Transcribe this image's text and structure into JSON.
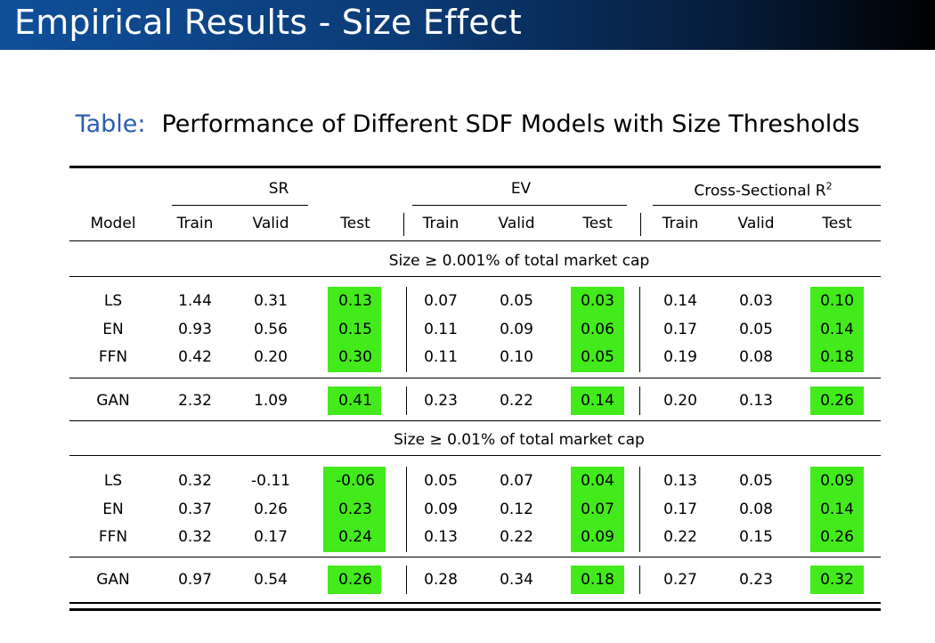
{
  "slide": {
    "title": "Empirical Results - Size Effect"
  },
  "caption": {
    "label": "Table:",
    "text": "Performance of Different SDF Models with Size Thresholds"
  },
  "table": {
    "groups": {
      "sr": "SR",
      "ev": "EV",
      "r2": "Cross-Sectional R",
      "r2_sup": "2"
    },
    "header": [
      "Model",
      "Train",
      "Valid",
      "Test",
      "Train",
      "Valid",
      "Test",
      "Train",
      "Valid",
      "Test"
    ],
    "sections": [
      {
        "title": "Size ≥ 0.001% of total market cap",
        "rows": [
          {
            "model": "LS",
            "values": [
              "1.44",
              "0.31",
              "0.13",
              "0.07",
              "0.05",
              "0.03",
              "0.14",
              "0.03",
              "0.10"
            ]
          },
          {
            "model": "EN",
            "values": [
              "0.93",
              "0.56",
              "0.15",
              "0.11",
              "0.09",
              "0.06",
              "0.17",
              "0.05",
              "0.14"
            ]
          },
          {
            "model": "FFN",
            "values": [
              "0.42",
              "0.20",
              "0.30",
              "0.11",
              "0.10",
              "0.05",
              "0.19",
              "0.08",
              "0.18"
            ]
          },
          {
            "model": "GAN",
            "values": [
              "2.32",
              "1.09",
              "0.41",
              "0.23",
              "0.22",
              "0.14",
              "0.20",
              "0.13",
              "0.26"
            ]
          }
        ]
      },
      {
        "title": "Size ≥ 0.01% of total market cap",
        "rows": [
          {
            "model": "LS",
            "values": [
              "0.32",
              "-0.11",
              "-0.06",
              "0.05",
              "0.07",
              "0.04",
              "0.13",
              "0.05",
              "0.09"
            ]
          },
          {
            "model": "EN",
            "values": [
              "0.37",
              "0.26",
              "0.23",
              "0.09",
              "0.12",
              "0.07",
              "0.17",
              "0.08",
              "0.14"
            ]
          },
          {
            "model": "FFN",
            "values": [
              "0.32",
              "0.17",
              "0.24",
              "0.13",
              "0.22",
              "0.09",
              "0.22",
              "0.15",
              "0.26"
            ]
          },
          {
            "model": "GAN",
            "values": [
              "0.97",
              "0.54",
              "0.26",
              "0.28",
              "0.34",
              "0.18",
              "0.27",
              "0.23",
              "0.32"
            ]
          }
        ]
      }
    ],
    "highlight_color": "#43ea1c"
  }
}
